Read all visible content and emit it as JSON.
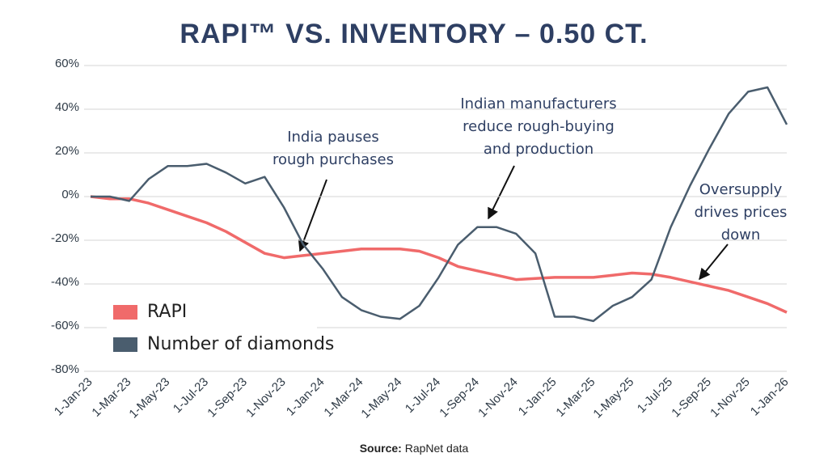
{
  "chart_data": {
    "type": "line",
    "title": "RAPI™ VS. INVENTORY – 0.50 CT.",
    "categories": [
      "1-Jan-23",
      null,
      "1-Mar-23",
      null,
      "1-May-23",
      null,
      "1-Jul-23",
      null,
      "1-Sep-23",
      null,
      "1-Nov-23",
      null,
      "1-Jan-24",
      null,
      "1-Mar-24",
      null,
      "1-May-24",
      null,
      "1-Jul-24",
      null,
      "1-Sep-24",
      null,
      "1-Nov-24",
      null,
      "1-Jan-25",
      null,
      "1-Mar-25",
      null,
      "1-May-25",
      null,
      "1-Jul-25",
      null,
      "1-Sep-25",
      null,
      "1-Nov-25",
      null,
      "1-Jan-26"
    ],
    "series": [
      {
        "name": "RAPI",
        "color": "#f06a6a",
        "values": [
          0,
          -1,
          -1,
          -3,
          -6,
          -9,
          -12,
          -16,
          -21,
          -26,
          -28,
          -27,
          -26,
          -25,
          -24,
          -24,
          -24,
          -25,
          -28,
          -32,
          -34,
          -36,
          -38,
          -37.5,
          -37,
          -37,
          -37,
          -36,
          -35,
          -35.5,
          -37,
          -39,
          -41,
          -43,
          -46,
          -49,
          -53
        ]
      },
      {
        "name": "Number of diamonds",
        "color": "#4a5d6e",
        "values": [
          0,
          0,
          -2,
          8,
          14,
          14,
          15,
          11,
          6,
          9,
          -5,
          -22,
          -33,
          -46,
          -52,
          -55,
          -56,
          -50,
          -37,
          -22,
          -14,
          -14,
          -17,
          -26,
          -55,
          -55,
          -57,
          -50,
          -46,
          -38,
          -14,
          5,
          22,
          38,
          48,
          50,
          33
        ]
      }
    ],
    "ylim": [
      -80,
      60
    ],
    "yticks": [
      {
        "value": 60,
        "label": "60%"
      },
      {
        "value": 40,
        "label": "40%"
      },
      {
        "value": 20,
        "label": "20%"
      },
      {
        "value": 0,
        "label": "0%"
      },
      {
        "value": -20,
        "label": "-20%"
      },
      {
        "value": -40,
        "label": "-40%"
      },
      {
        "value": -60,
        "label": "-60%"
      },
      {
        "value": -80,
        "label": "-80%"
      }
    ],
    "grid": true,
    "legend": "lower-left",
    "annotations": [
      {
        "text": [
          "India pauses",
          "rough purchases"
        ]
      },
      {
        "text": [
          "Indian manufacturers",
          "reduce rough-buying",
          "and production"
        ]
      },
      {
        "text": [
          "Oversupply",
          "drives prices",
          "down"
        ]
      }
    ],
    "source_label": "Source:",
    "source": "RapNet data"
  }
}
